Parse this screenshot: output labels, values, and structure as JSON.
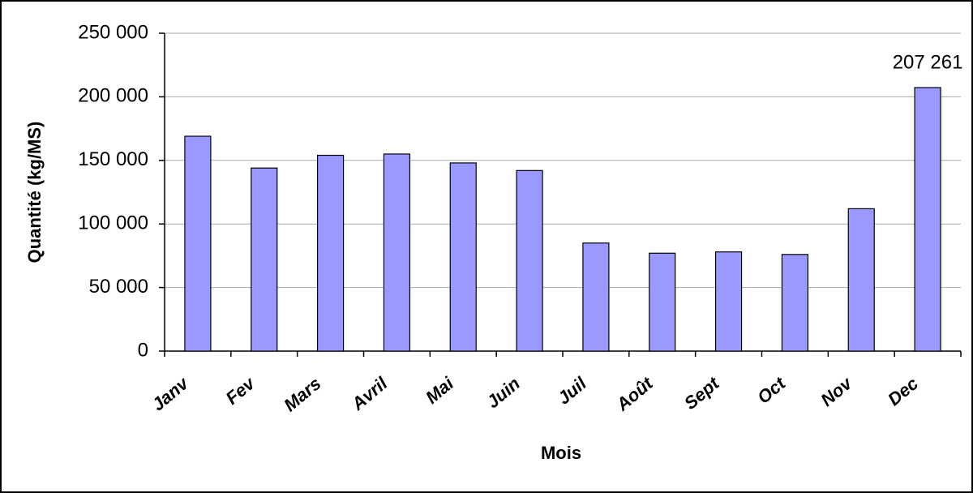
{
  "chart_data": {
    "type": "bar",
    "x_label": "Mois",
    "y_label": "Quantité (kg/MS)",
    "categories": [
      "Janv",
      "Fev",
      "Mars",
      "Avril",
      "Mai",
      "Juin",
      "Juil",
      "Août",
      "Sept",
      "Oct",
      "Nov",
      "Dec"
    ],
    "values": [
      169000,
      144000,
      154000,
      155000,
      148000,
      142000,
      85000,
      77000,
      78000,
      76000,
      112000,
      207261
    ],
    "value_labels": [
      null,
      null,
      null,
      null,
      null,
      null,
      null,
      null,
      null,
      null,
      null,
      "207 261"
    ],
    "color": "#9999ff",
    "ylim": [
      0,
      250000
    ],
    "yticks": [
      0,
      {
        "value": 50000,
        "label": "50 000"
      },
      {
        "value": 100000,
        "label": "100 000"
      },
      {
        "value": 150000,
        "label": "150 000"
      },
      {
        "value": 200000,
        "label": "200 000"
      },
      {
        "value": 250000,
        "label": "250 000"
      }
    ],
    "grid": true
  }
}
